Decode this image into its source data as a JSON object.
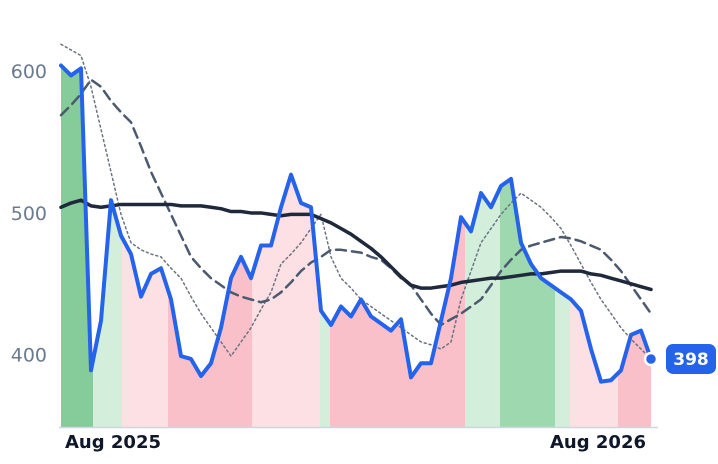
{
  "chart_data": {
    "type": "line",
    "xlim": [
      0,
      59.1
    ],
    "ylim": [
      350,
      623
    ],
    "xticks": [
      {
        "value": 5.2,
        "label": "Aug 2025"
      },
      {
        "value": 53.7,
        "label": "Aug 2026"
      }
    ],
    "yticks": [
      400,
      500,
      600
    ],
    "x": [
      0,
      1,
      2,
      3,
      4,
      5,
      6,
      7,
      8,
      9,
      10,
      11,
      12,
      13,
      14,
      15,
      16,
      17,
      18,
      19,
      20,
      21,
      22,
      23,
      24,
      25,
      26,
      27,
      28,
      29,
      30,
      31,
      32,
      33,
      34,
      35,
      36,
      37,
      38,
      39,
      40,
      41,
      42,
      43,
      44,
      45,
      46,
      47,
      48,
      49,
      50,
      51,
      52,
      53,
      54,
      55,
      56,
      57,
      58,
      59
    ],
    "regions": [
      {
        "start": 0,
        "end": 3.2,
        "color": "#86cc9a"
      },
      {
        "start": 3.2,
        "end": 6.1,
        "color": "#d3eedb"
      },
      {
        "start": 6.1,
        "end": 10.7,
        "color": "#fde0e4"
      },
      {
        "start": 10.7,
        "end": 19.1,
        "color": "#f9c0ca"
      },
      {
        "start": 19.1,
        "end": 25.9,
        "color": "#fde0e4"
      },
      {
        "start": 25.9,
        "end": 26.9,
        "color": "#d3eedb"
      },
      {
        "start": 26.9,
        "end": 40.4,
        "color": "#f9c0ca"
      },
      {
        "start": 40.4,
        "end": 43.9,
        "color": "#d3eedb"
      },
      {
        "start": 43.9,
        "end": 49.4,
        "color": "#9ed8ae"
      },
      {
        "start": 49.4,
        "end": 50.9,
        "color": "#d3eedb"
      },
      {
        "start": 50.9,
        "end": 55.7,
        "color": "#fde0e4"
      },
      {
        "start": 55.7,
        "end": 59.1,
        "color": "#f9c0ca"
      }
    ],
    "series": [
      {
        "color": "#2563eb",
        "width": 4,
        "dash": "solid",
        "values": [
          605,
          598,
          603,
          390,
          425,
          510,
          485,
          472,
          442,
          458,
          462,
          440,
          400,
          398,
          386,
          395,
          420,
          455,
          470,
          455,
          478,
          478,
          505,
          528,
          508,
          505,
          432,
          422,
          435,
          428,
          440,
          428,
          423,
          418,
          426,
          385,
          395,
          395,
          425,
          455,
          498,
          488,
          515,
          505,
          520,
          525,
          480,
          465,
          455,
          450,
          445,
          440,
          432,
          405,
          382,
          383,
          390,
          415,
          418,
          398
        ]
      },
      {
        "color": "#1e293b",
        "width": 3.5,
        "dash": "solid",
        "values": [
          505,
          508,
          510,
          506,
          505,
          506,
          507,
          507,
          507,
          507,
          507,
          507,
          506,
          506,
          506,
          505,
          504,
          502,
          502,
          501,
          501,
          500,
          499,
          500,
          500,
          500,
          497,
          494,
          490,
          486,
          481,
          476,
          470,
          463,
          456,
          450,
          448,
          448,
          449,
          450,
          452,
          453,
          454,
          455,
          455,
          456,
          457,
          458,
          458,
          459,
          460,
          460,
          460,
          458,
          457,
          455,
          453,
          451,
          449,
          447
        ]
      },
      {
        "color": "#4b5a6e",
        "width": 2.5,
        "dash": "dashed",
        "values": [
          570,
          577,
          585,
          595,
          590,
          580,
          572,
          565,
          548,
          530,
          515,
          500,
          485,
          470,
          462,
          455,
          450,
          445,
          442,
          440,
          438,
          440,
          445,
          452,
          460,
          466,
          470,
          475,
          475,
          474,
          473,
          470,
          468,
          462,
          455,
          450,
          440,
          430,
          422,
          426,
          430,
          435,
          440,
          450,
          460,
          468,
          475,
          478,
          480,
          482,
          484,
          483,
          481,
          478,
          475,
          468,
          460,
          450,
          440,
          430
        ]
      },
      {
        "color": "#6b7280",
        "width": 1.5,
        "dash": "dotted",
        "values": [
          620,
          616,
          612,
          590,
          560,
          530,
          500,
          480,
          475,
          472,
          470,
          462,
          455,
          442,
          430,
          420,
          410,
          400,
          410,
          420,
          433,
          445,
          465,
          472,
          480,
          490,
          500,
          470,
          455,
          448,
          440,
          435,
          430,
          425,
          420,
          415,
          410,
          408,
          405,
          410,
          440,
          460,
          480,
          490,
          500,
          508,
          515,
          510,
          505,
          498,
          490,
          478,
          465,
          452,
          440,
          430,
          420,
          412,
          405,
          398
        ]
      }
    ]
  }
}
